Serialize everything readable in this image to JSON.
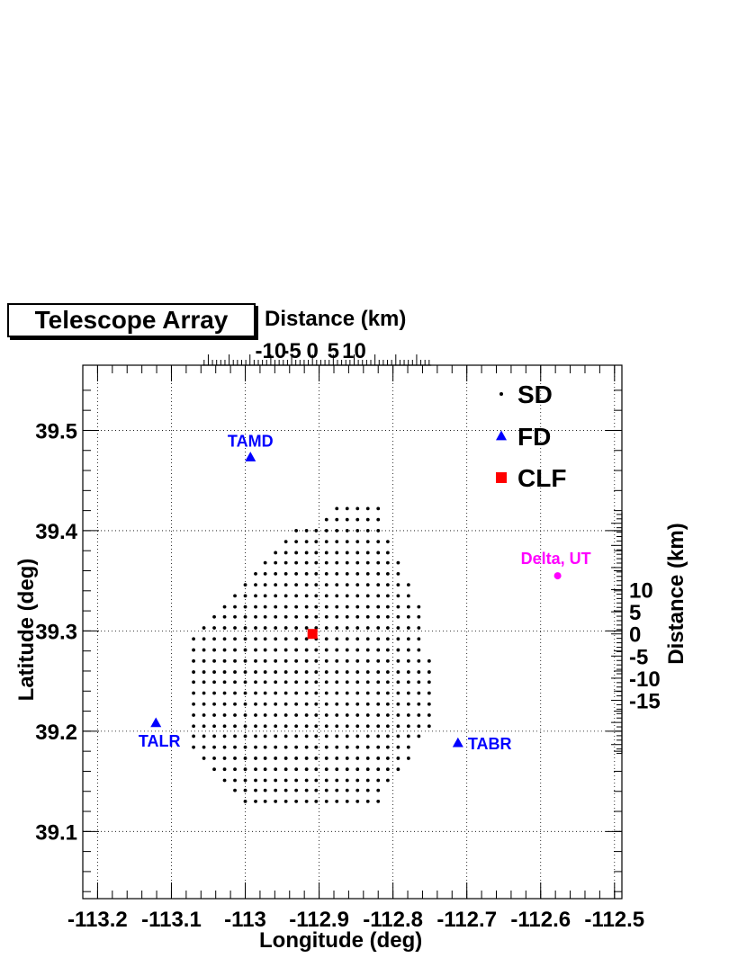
{
  "chart_data": {
    "type": "scatter",
    "title": "Telescope Array",
    "xlabel": "Longitude (deg)",
    "ylabel": "Latitude (deg)",
    "top_axis_label": "Distance (km)",
    "right_axis_label": "Distance (km)",
    "xlim": [
      -113.22,
      -112.49
    ],
    "ylim": [
      39.033,
      39.565
    ],
    "x_ticks": [
      "-113.2",
      "-113.1",
      "-113",
      "-112.9",
      "-112.8",
      "-112.7",
      "-112.6",
      "-112.5"
    ],
    "y_ticks": [
      "39.1",
      "39.2",
      "39.3",
      "39.4",
      "39.5"
    ],
    "top_ticks": [
      "-10",
      "-5",
      "0",
      "5",
      "10"
    ],
    "right_ticks": [
      "10",
      "5",
      "0",
      "-5",
      "-10",
      "-15"
    ],
    "grid": true,
    "legend": {
      "placement": "top-right",
      "entries": [
        {
          "label": "SD",
          "marker": "dot",
          "color": "#000000"
        },
        {
          "label": "FD",
          "marker": "triangle",
          "color": "#0000ff"
        },
        {
          "label": "CLF",
          "marker": "square",
          "color": "#ff0000"
        }
      ]
    },
    "colors": {
      "sd": "#000000",
      "fd": "#0000ff",
      "clf": "#ff0000",
      "town": "#ff00ff"
    },
    "fd_stations": [
      {
        "name": "TAMD",
        "lon": -112.993,
        "lat": 39.473
      },
      {
        "name": "TALR",
        "lon": -113.121,
        "lat": 39.208
      },
      {
        "name": "TABR",
        "lon": -112.712,
        "lat": 39.188
      }
    ],
    "clf": {
      "name": "CLF",
      "lon": -112.909,
      "lat": 39.297
    },
    "town": {
      "name": "Delta, UT",
      "lon": -112.577,
      "lat": 39.355
    },
    "sd_rows": [
      {
        "lat": 39.422,
        "lons": [
          -112.876,
          -112.862,
          -112.848,
          -112.834,
          -112.82
        ]
      },
      {
        "lat": 39.411,
        "lons": [
          -112.89,
          -112.876,
          -112.862,
          -112.848,
          -112.834,
          -112.82
        ]
      },
      {
        "lat": 39.4,
        "lons": [
          -112.931,
          -112.917,
          -112.904,
          -112.89,
          -112.876,
          -112.862,
          -112.848,
          -112.834,
          -112.82
        ]
      },
      {
        "lat": 39.389,
        "lons": [
          -112.945,
          -112.931,
          -112.917,
          -112.904,
          -112.89,
          -112.876,
          -112.862,
          -112.848,
          -112.834,
          -112.82,
          -112.807
        ]
      },
      {
        "lat": 39.378,
        "lons": [
          -112.959,
          -112.945,
          -112.931,
          -112.917,
          -112.904,
          -112.89,
          -112.876,
          -112.862,
          -112.848,
          -112.834,
          -112.82,
          -112.807
        ]
      },
      {
        "lat": 39.368,
        "lons": [
          -112.973,
          -112.959,
          -112.945,
          -112.931,
          -112.917,
          -112.904,
          -112.89,
          -112.876,
          -112.862,
          -112.848,
          -112.834,
          -112.82,
          -112.807,
          -112.793
        ]
      },
      {
        "lat": 39.357,
        "lons": [
          -112.986,
          -112.973,
          -112.959,
          -112.945,
          -112.931,
          -112.917,
          -112.904,
          -112.89,
          -112.876,
          -112.862,
          -112.848,
          -112.834,
          -112.82,
          -112.807,
          -112.793
        ]
      },
      {
        "lat": 39.346,
        "lons": [
          -113.0,
          -112.986,
          -112.973,
          -112.959,
          -112.945,
          -112.931,
          -112.917,
          -112.904,
          -112.89,
          -112.876,
          -112.862,
          -112.848,
          -112.834,
          -112.82,
          -112.807,
          -112.793,
          -112.779
        ]
      },
      {
        "lat": 39.335,
        "lons": [
          -113.014,
          -113.0,
          -112.986,
          -112.973,
          -112.959,
          -112.945,
          -112.931,
          -112.917,
          -112.904,
          -112.89,
          -112.876,
          -112.862,
          -112.848,
          -112.834,
          -112.82,
          -112.807,
          -112.793,
          -112.779
        ]
      },
      {
        "lat": 39.324,
        "lons": [
          -113.028,
          -113.014,
          -113.0,
          -112.986,
          -112.973,
          -112.959,
          -112.945,
          -112.931,
          -112.917,
          -112.904,
          -112.89,
          -112.876,
          -112.862,
          -112.848,
          -112.834,
          -112.82,
          -112.807,
          -112.793,
          -112.779,
          -112.765
        ]
      },
      {
        "lat": 39.314,
        "lons": [
          -113.042,
          -113.028,
          -113.014,
          -113.0,
          -112.986,
          -112.973,
          -112.959,
          -112.945,
          -112.931,
          -112.917,
          -112.904,
          -112.89,
          -112.876,
          -112.862,
          -112.848,
          -112.834,
          -112.82,
          -112.807,
          -112.793,
          -112.779,
          -112.765
        ]
      },
      {
        "lat": 39.303,
        "lons": [
          -113.056,
          -113.042,
          -113.028,
          -113.014,
          -113.0,
          -112.986,
          -112.973,
          -112.959,
          -112.945,
          -112.931,
          -112.917,
          -112.904,
          -112.89,
          -112.876,
          -112.862,
          -112.848,
          -112.834,
          -112.82,
          -112.807,
          -112.793,
          -112.779,
          -112.765
        ]
      },
      {
        "lat": 39.292,
        "lons": [
          -113.07,
          -113.056,
          -113.042,
          -113.028,
          -113.014,
          -113.0,
          -112.986,
          -112.973,
          -112.959,
          -112.945,
          -112.931,
          -112.917,
          -112.904,
          -112.89,
          -112.876,
          -112.862,
          -112.848,
          -112.834,
          -112.82,
          -112.807,
          -112.793,
          -112.779,
          -112.765
        ]
      },
      {
        "lat": 39.281,
        "lons": [
          -113.07,
          -113.056,
          -113.042,
          -113.028,
          -113.014,
          -113.0,
          -112.986,
          -112.973,
          -112.959,
          -112.945,
          -112.931,
          -112.917,
          -112.904,
          -112.89,
          -112.876,
          -112.862,
          -112.848,
          -112.834,
          -112.82,
          -112.807,
          -112.793,
          -112.779,
          -112.765
        ]
      },
      {
        "lat": 39.27,
        "lons": [
          -113.07,
          -113.056,
          -113.042,
          -113.028,
          -113.014,
          -113.0,
          -112.986,
          -112.973,
          -112.959,
          -112.945,
          -112.931,
          -112.917,
          -112.904,
          -112.89,
          -112.876,
          -112.862,
          -112.848,
          -112.834,
          -112.82,
          -112.807,
          -112.793,
          -112.779,
          -112.765,
          -112.751
        ]
      },
      {
        "lat": 39.259,
        "lons": [
          -113.07,
          -113.056,
          -113.042,
          -113.028,
          -113.014,
          -113.0,
          -112.986,
          -112.973,
          -112.959,
          -112.945,
          -112.931,
          -112.917,
          -112.904,
          -112.89,
          -112.876,
          -112.862,
          -112.848,
          -112.834,
          -112.82,
          -112.807,
          -112.793,
          -112.779,
          -112.765,
          -112.751
        ]
      },
      {
        "lat": 39.249,
        "lons": [
          -113.07,
          -113.056,
          -113.042,
          -113.028,
          -113.014,
          -113.0,
          -112.986,
          -112.973,
          -112.959,
          -112.945,
          -112.931,
          -112.917,
          -112.904,
          -112.89,
          -112.876,
          -112.862,
          -112.848,
          -112.834,
          -112.82,
          -112.807,
          -112.793,
          -112.779,
          -112.765,
          -112.751
        ]
      },
      {
        "lat": 39.238,
        "lons": [
          -113.07,
          -113.056,
          -113.042,
          -113.028,
          -113.014,
          -113.0,
          -112.986,
          -112.973,
          -112.959,
          -112.945,
          -112.931,
          -112.917,
          -112.904,
          -112.89,
          -112.876,
          -112.862,
          -112.848,
          -112.834,
          -112.82,
          -112.807,
          -112.793,
          -112.779,
          -112.765,
          -112.751
        ]
      },
      {
        "lat": 39.227,
        "lons": [
          -113.07,
          -113.056,
          -113.042,
          -113.028,
          -113.014,
          -113.0,
          -112.986,
          -112.973,
          -112.959,
          -112.945,
          -112.931,
          -112.917,
          -112.904,
          -112.89,
          -112.876,
          -112.862,
          -112.848,
          -112.834,
          -112.82,
          -112.807,
          -112.793,
          -112.779,
          -112.765,
          -112.751
        ]
      },
      {
        "lat": 39.216,
        "lons": [
          -113.07,
          -113.056,
          -113.042,
          -113.028,
          -113.014,
          -113.0,
          -112.986,
          -112.973,
          -112.959,
          -112.945,
          -112.931,
          -112.917,
          -112.904,
          -112.89,
          -112.876,
          -112.862,
          -112.848,
          -112.834,
          -112.82,
          -112.807,
          -112.793,
          -112.779,
          -112.765,
          -112.751
        ]
      },
      {
        "lat": 39.205,
        "lons": [
          -113.07,
          -113.056,
          -113.042,
          -113.028,
          -113.014,
          -113.0,
          -112.986,
          -112.973,
          -112.959,
          -112.945,
          -112.931,
          -112.917,
          -112.904,
          -112.89,
          -112.876,
          -112.862,
          -112.848,
          -112.834,
          -112.82,
          -112.807,
          -112.793,
          -112.779,
          -112.765,
          -112.751
        ]
      },
      {
        "lat": 39.195,
        "lons": [
          -113.07,
          -113.056,
          -113.042,
          -113.028,
          -113.014,
          -113.0,
          -112.986,
          -112.973,
          -112.959,
          -112.945,
          -112.931,
          -112.917,
          -112.904,
          -112.89,
          -112.876,
          -112.862,
          -112.848,
          -112.834,
          -112.82,
          -112.807,
          -112.793,
          -112.779,
          -112.765
        ]
      },
      {
        "lat": 39.184,
        "lons": [
          -113.07,
          -113.056,
          -113.042,
          -113.028,
          -113.014,
          -113.0,
          -112.986,
          -112.973,
          -112.959,
          -112.945,
          -112.931,
          -112.917,
          -112.904,
          -112.89,
          -112.876,
          -112.862,
          -112.848,
          -112.834,
          -112.82,
          -112.807,
          -112.793,
          -112.779
        ]
      },
      {
        "lat": 39.173,
        "lons": [
          -113.056,
          -113.042,
          -113.028,
          -113.014,
          -113.0,
          -112.986,
          -112.973,
          -112.959,
          -112.945,
          -112.931,
          -112.917,
          -112.904,
          -112.89,
          -112.876,
          -112.862,
          -112.848,
          -112.834,
          -112.82,
          -112.807,
          -112.793,
          -112.779
        ]
      },
      {
        "lat": 39.162,
        "lons": [
          -113.042,
          -113.028,
          -113.014,
          -113.0,
          -112.986,
          -112.973,
          -112.959,
          -112.945,
          -112.931,
          -112.917,
          -112.904,
          -112.89,
          -112.876,
          -112.862,
          -112.848,
          -112.834,
          -112.82,
          -112.807,
          -112.793
        ]
      },
      {
        "lat": 39.151,
        "lons": [
          -113.028,
          -113.014,
          -113.0,
          -112.986,
          -112.973,
          -112.959,
          -112.945,
          -112.931,
          -112.917,
          -112.904,
          -112.89,
          -112.876,
          -112.862,
          -112.848,
          -112.834,
          -112.82,
          -112.807
        ]
      },
      {
        "lat": 39.141,
        "lons": [
          -113.014,
          -113.0,
          -112.986,
          -112.973,
          -112.959,
          -112.945,
          -112.931,
          -112.917,
          -112.904,
          -112.89,
          -112.876,
          -112.862,
          -112.848,
          -112.834,
          -112.82
        ]
      },
      {
        "lat": 39.13,
        "lons": [
          -113.0,
          -112.986,
          -112.973,
          -112.959,
          -112.945,
          -112.931,
          -112.917,
          -112.904,
          -112.89,
          -112.876,
          -112.862,
          -112.848,
          -112.834,
          -112.82
        ]
      }
    ]
  }
}
